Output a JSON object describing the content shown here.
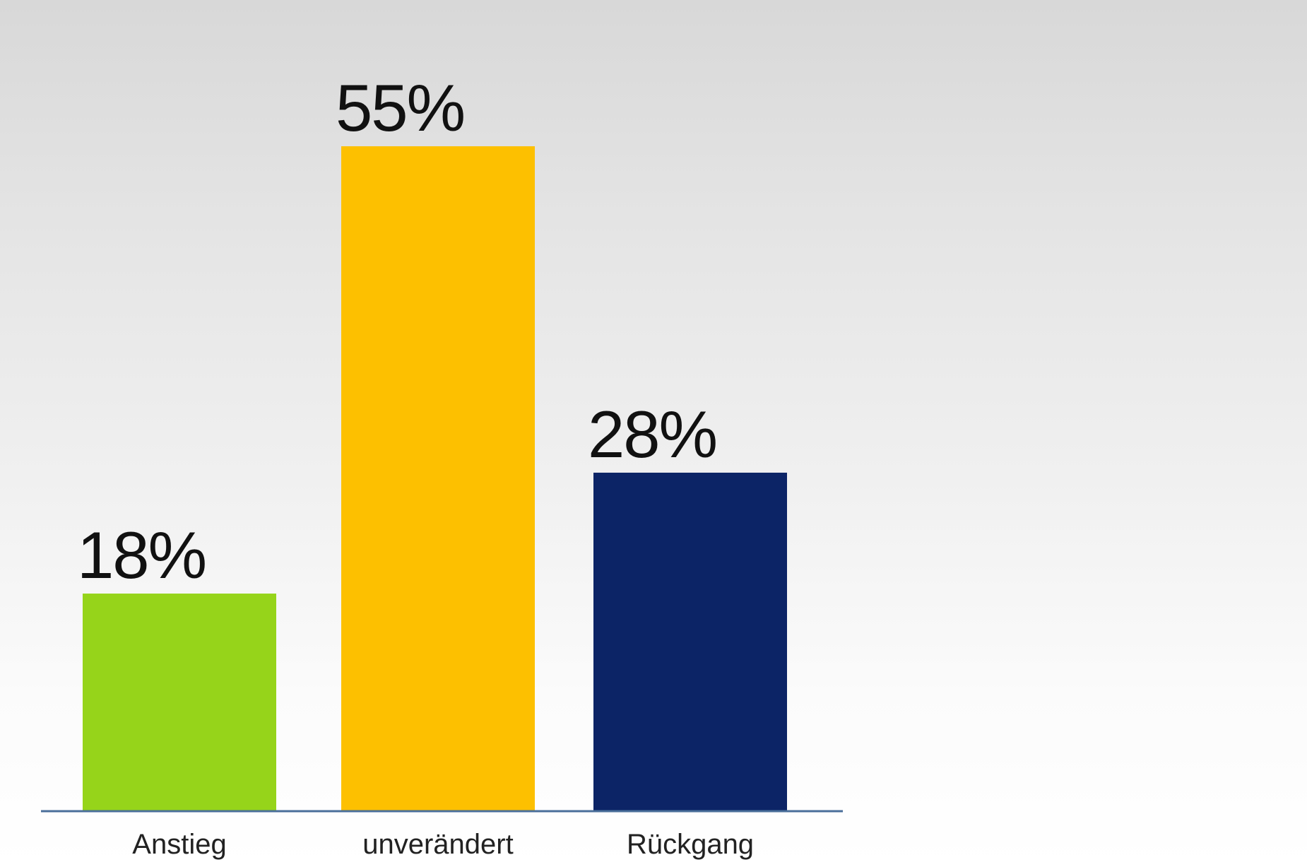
{
  "chart_data": {
    "type": "bar",
    "categories": [
      "Anstieg",
      "unverändert",
      "Rückgang"
    ],
    "values": [
      18,
      55,
      28
    ],
    "value_labels": [
      "18%",
      "55%",
      "28%"
    ],
    "colors": [
      "#96d41a",
      "#fdc000",
      "#0c2466"
    ],
    "axis_color": "#4a6f9a",
    "ylim": [
      0,
      55
    ],
    "grid": false,
    "legend": "none"
  }
}
